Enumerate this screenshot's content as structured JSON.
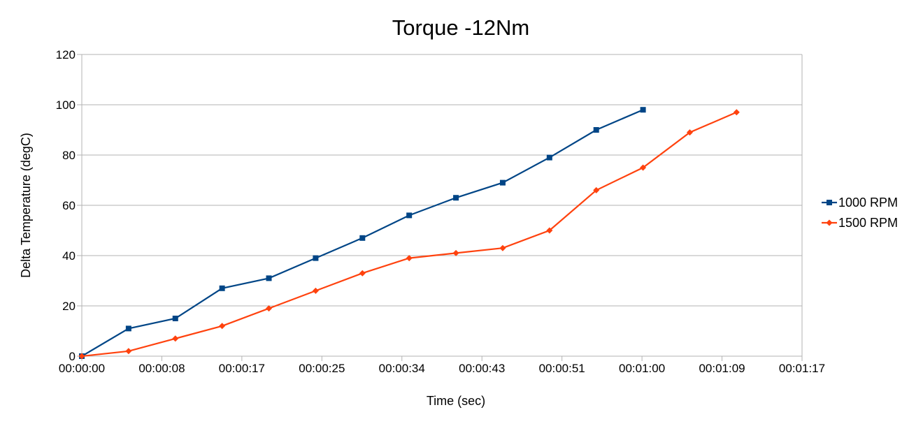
{
  "chart_data": {
    "type": "line",
    "title": "Torque -12Nm",
    "xlabel": "Time (sec)",
    "ylabel": "Delta Temperature (degC)",
    "xlim": [
      "00:00:00",
      "00:01:17"
    ],
    "ylim": [
      0,
      120
    ],
    "x_ticks": [
      "00:00:00",
      "00:00:08",
      "00:00:17",
      "00:00:25",
      "00:00:34",
      "00:00:43",
      "00:00:51",
      "00:01:00",
      "00:01:09",
      "00:01:17"
    ],
    "y_ticks": [
      "0",
      "20",
      "40",
      "60",
      "80",
      "100",
      "120"
    ],
    "grid": "horizontal",
    "legend_position": "right",
    "series": [
      {
        "name": "1000 RPM",
        "color": "#004586",
        "marker": "square",
        "x": [
          "00:00:00",
          "00:00:05",
          "00:00:10",
          "00:00:15",
          "00:00:20",
          "00:00:25",
          "00:00:30",
          "00:00:35",
          "00:00:40",
          "00:00:45",
          "00:00:50",
          "00:00:55",
          "00:01:00"
        ],
        "values": [
          0,
          11,
          15,
          27,
          31,
          39,
          47,
          56,
          63,
          69,
          79,
          90,
          98
        ]
      },
      {
        "name": "1500 RPM",
        "color": "#ff420e",
        "marker": "diamond",
        "x": [
          "00:00:00",
          "00:00:05",
          "00:00:10",
          "00:00:15",
          "00:00:20",
          "00:00:25",
          "00:00:30",
          "00:00:35",
          "00:00:40",
          "00:00:45",
          "00:00:50",
          "00:00:55",
          "00:01:00",
          "00:01:05",
          "00:01:10"
        ],
        "values": [
          0,
          2,
          7,
          12,
          19,
          26,
          33,
          39,
          41,
          43,
          50,
          66,
          75,
          89,
          97
        ]
      }
    ]
  }
}
